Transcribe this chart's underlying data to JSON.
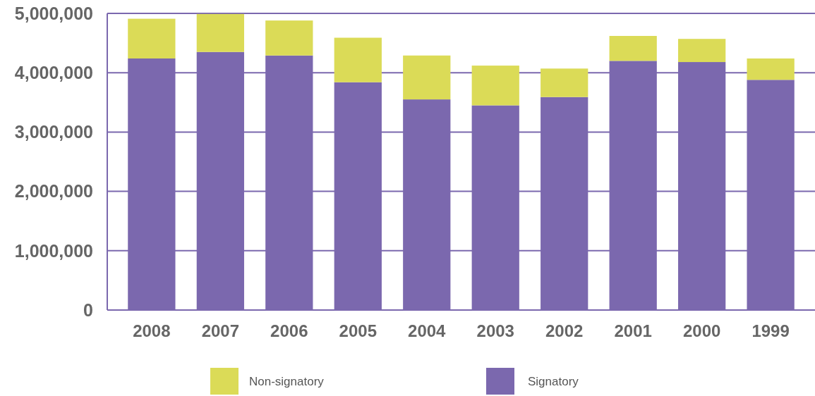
{
  "chart_data": {
    "type": "bar",
    "stacked": true,
    "categories": [
      "2008",
      "2007",
      "2006",
      "2005",
      "2004",
      "2003",
      "2002",
      "2001",
      "2000",
      "1999"
    ],
    "series": [
      {
        "name": "Signatory",
        "color": "#7b68ae",
        "values": [
          4240000,
          4350000,
          4290000,
          3840000,
          3550000,
          3450000,
          3590000,
          4200000,
          4180000,
          3880000
        ]
      },
      {
        "name": "Non-signatory",
        "color": "#dbdb57",
        "values": [
          670000,
          640000,
          590000,
          750000,
          740000,
          670000,
          480000,
          420000,
          390000,
          360000
        ]
      }
    ],
    "ylim": [
      0,
      5000000
    ],
    "yticks": [
      {
        "value": 0,
        "label": "0"
      },
      {
        "value": 1000000,
        "label": "1,000,000"
      },
      {
        "value": 2000000,
        "label": "2,000,000"
      },
      {
        "value": 3000000,
        "label": "3,000,000"
      },
      {
        "value": 4000000,
        "label": "4,000,000"
      },
      {
        "value": 5000000,
        "label": "5,000,000"
      }
    ],
    "grid": "y",
    "legend": "bottom"
  }
}
